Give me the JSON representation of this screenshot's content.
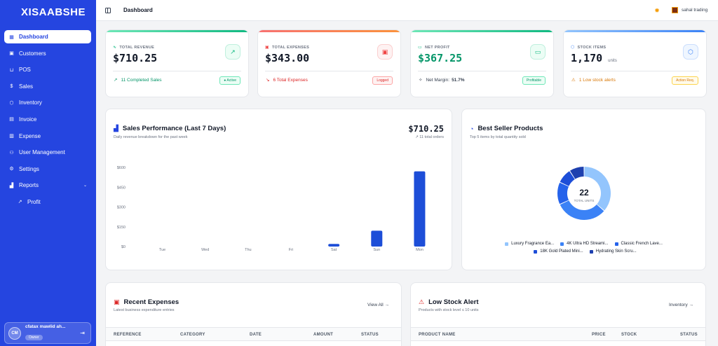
{
  "sidebar": {
    "logo": "XISAABSHE",
    "items": [
      {
        "label": "Dashboard",
        "icon": "layout-icon",
        "glyph": "▦",
        "active": true
      },
      {
        "label": "Customers",
        "icon": "customers-icon",
        "glyph": "▣"
      },
      {
        "label": "POS",
        "icon": "cart-icon",
        "glyph": "⊔"
      },
      {
        "label": "Sales",
        "icon": "dollar-icon",
        "glyph": "$"
      },
      {
        "label": "Inventory",
        "icon": "box-icon",
        "glyph": "⬡"
      },
      {
        "label": "Invoice",
        "icon": "invoice-icon",
        "glyph": "▤"
      },
      {
        "label": "Expense",
        "icon": "receipt-icon",
        "glyph": "▥"
      },
      {
        "label": "User Management",
        "icon": "users-icon",
        "glyph": "⚇"
      },
      {
        "label": "Settings",
        "icon": "gear-icon",
        "glyph": "⚙"
      },
      {
        "label": "Reports",
        "icon": "chart-icon",
        "glyph": "▟"
      }
    ],
    "sub_items": [
      {
        "label": "Profit",
        "glyph": "↗"
      }
    ],
    "user": {
      "initials": "CM",
      "name": "cfatax mawlid ah...",
      "role": "Owner"
    }
  },
  "topbar": {
    "title": "Dashboard",
    "store": "sahal trading"
  },
  "stats": [
    {
      "label": "TOTAL REVENUE",
      "value": "$710.25",
      "unit": "",
      "footer": "11 Completed Sales",
      "badge": "● Active",
      "color": "#10b981",
      "value_color": "#111827",
      "foot_color": "#059669",
      "icon_glyph": "↗",
      "foot_glyph": "↗",
      "label_glyph": "∿"
    },
    {
      "label": "TOTAL EXPENSES",
      "value": "$343.00",
      "unit": "",
      "footer": "6 Total Expenses",
      "badge": "Logged",
      "color": "#ef4444",
      "value_color": "#111827",
      "foot_color": "#dc2626",
      "icon_glyph": "▣",
      "foot_glyph": "↘",
      "label_glyph": "▣"
    },
    {
      "label": "NET PROFIT",
      "value": "$367.25",
      "unit": "",
      "footer_prefix": "Net Margin:",
      "footer": "51.7%",
      "badge": "Profitable",
      "color": "#10b981",
      "value_color": "#059669",
      "foot_color": "#374151",
      "icon_glyph": "▭",
      "foot_glyph": "✧",
      "label_glyph": "▭"
    },
    {
      "label": "STOCK ITEMS",
      "value": "1,170",
      "unit": "units",
      "footer": "1 Low stock alerts",
      "badge": "Action Req.",
      "color": "#3b82f6",
      "value_color": "#111827",
      "foot_color": "#d97706",
      "icon_glyph": "⬡",
      "foot_glyph": "⚠",
      "label_glyph": "⬡"
    }
  ],
  "sales_panel": {
    "title": "Sales Performance (Last 7 Days)",
    "subtitle": "Daily revenue breakdown for the past week",
    "total": "$710.25",
    "orders": "↗ 11 total orders"
  },
  "chart_data": [
    {
      "type": "bar",
      "categories": [
        "Tue",
        "Wed",
        "Thu",
        "Fri",
        "Sat",
        "Sun",
        "Mon"
      ],
      "values": [
        0,
        0,
        0,
        0,
        20,
        120,
        570
      ],
      "ylim": [
        0,
        600
      ],
      "yticks": [
        "$0",
        "$150",
        "$300",
        "$450",
        "$600"
      ],
      "ytick_values": [
        0,
        150,
        300,
        450,
        600
      ],
      "grid": false,
      "color": "#1d4ed8"
    },
    {
      "type": "pie",
      "title": "Best Seller Products",
      "subtitle": "Top 5 items by total quantity sold",
      "center_value": "22",
      "center_label": "TOTAL UNITS",
      "labels": [
        "Luxury Fragrance Ea...",
        "4K Ultra HD Streami...",
        "Classic French Lave...",
        "18K Gold Plated Mini...",
        "Hydrating Skin Scru..."
      ],
      "values": [
        8,
        7,
        3,
        2,
        2
      ],
      "colors": [
        "#93c5fd",
        "#3b82f6",
        "#2563eb",
        "#1d4ed8",
        "#1e40af"
      ],
      "legend": "bottom"
    }
  ],
  "expenses_panel": {
    "title": "Recent Expenses",
    "subtitle": "Latest business expenditure entries",
    "link": "View All →",
    "columns": [
      "REFERENCE",
      "CATEGORY",
      "DATE",
      "AMOUNT",
      "STATUS"
    ]
  },
  "lowstock_panel": {
    "title": "Low Stock Alert",
    "subtitle": "Products with stock level ≤ 10 units",
    "link": "Inventory →",
    "columns": [
      "PRODUCT NAME",
      "PRICE",
      "STOCK",
      "STATUS"
    ]
  }
}
